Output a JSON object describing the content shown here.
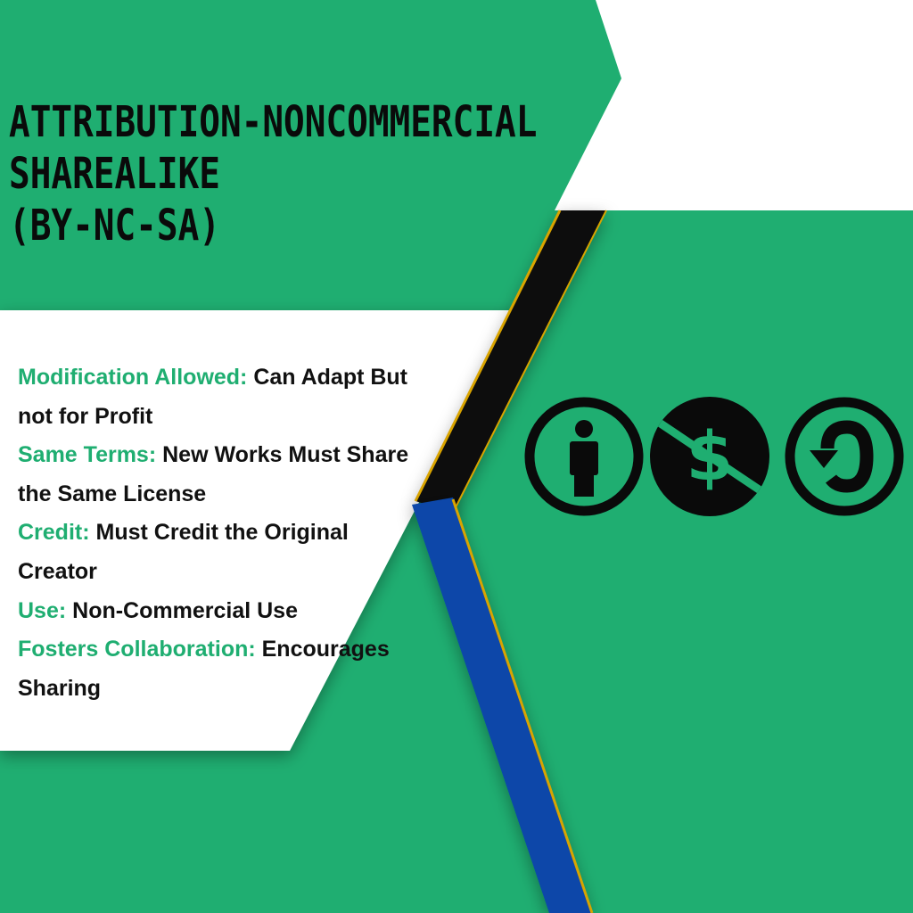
{
  "title_lines": [
    "ATTRIBUTION-NONCOMMERCIAL",
    "SHAREALIKE",
    "(BY-NC-SA)"
  ],
  "features": [
    {
      "label": "Modification Allowed:",
      "text": " Can Adapt But not for Profit"
    },
    {
      "label": "Same Terms:",
      "text": " New Works Must Share the Same License"
    },
    {
      "label": "Credit:",
      "text": " Must Credit the Original Creator"
    },
    {
      "label": "Use:",
      "text": " Non-Commercial Use"
    },
    {
      "label": "Fosters Collaboration:",
      "text": " Encourages Sharing"
    }
  ],
  "icons": [
    "attribution-person-icon",
    "noncommercial-dollar-icon",
    "sharealike-arrow-icon"
  ],
  "colors": {
    "green": "#1fae71",
    "white": "#ffffff",
    "black": "#0a0a0a",
    "blue": "#0747a9",
    "gold": "#d9a400"
  }
}
